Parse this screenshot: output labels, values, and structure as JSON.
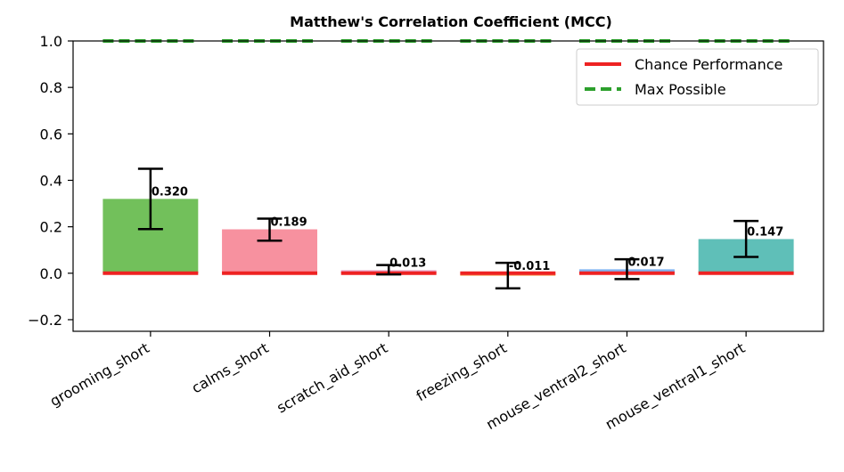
{
  "chart_data": {
    "type": "bar",
    "title": "Matthew's Correlation Coefficient (MCC)",
    "xlabel": "",
    "ylabel": "",
    "ylim": [
      -0.25,
      1.0
    ],
    "yticks": [
      -0.2,
      0.0,
      0.2,
      0.4,
      0.6,
      0.8,
      1.0
    ],
    "ytick_labels": [
      "−0.2",
      "0.0",
      "0.2",
      "0.4",
      "0.6",
      "0.8",
      "1.0"
    ],
    "categories": [
      "grooming_short",
      "calms_short",
      "scratch_aid_short",
      "freezing_short",
      "mouse_ventral2_short",
      "mouse_ventral1_short"
    ],
    "values": [
      0.32,
      0.189,
      0.013,
      -0.011,
      0.017,
      0.147
    ],
    "value_labels": [
      "0.320",
      "0.189",
      "0.013",
      "-0.011",
      "0.017",
      "0.147"
    ],
    "error_low": [
      0.19,
      0.14,
      -0.005,
      -0.065,
      -0.025,
      0.07
    ],
    "error_high": [
      0.45,
      0.235,
      0.035,
      0.045,
      0.06,
      0.225
    ],
    "bar_colors": [
      "#72c05b",
      "#f7919f",
      "#e6a0c4",
      "#f5a25d",
      "#7fb3f0",
      "#5fbfb8"
    ],
    "chance_level": 0.0,
    "max_possible": 1.0,
    "legend": {
      "placement": "top-right",
      "entries": [
        {
          "label": "Chance Performance",
          "color": "#ee2222",
          "style": "solid"
        },
        {
          "label": "Max Possible",
          "color": "#2ca02c",
          "style": "dashed"
        }
      ]
    }
  }
}
